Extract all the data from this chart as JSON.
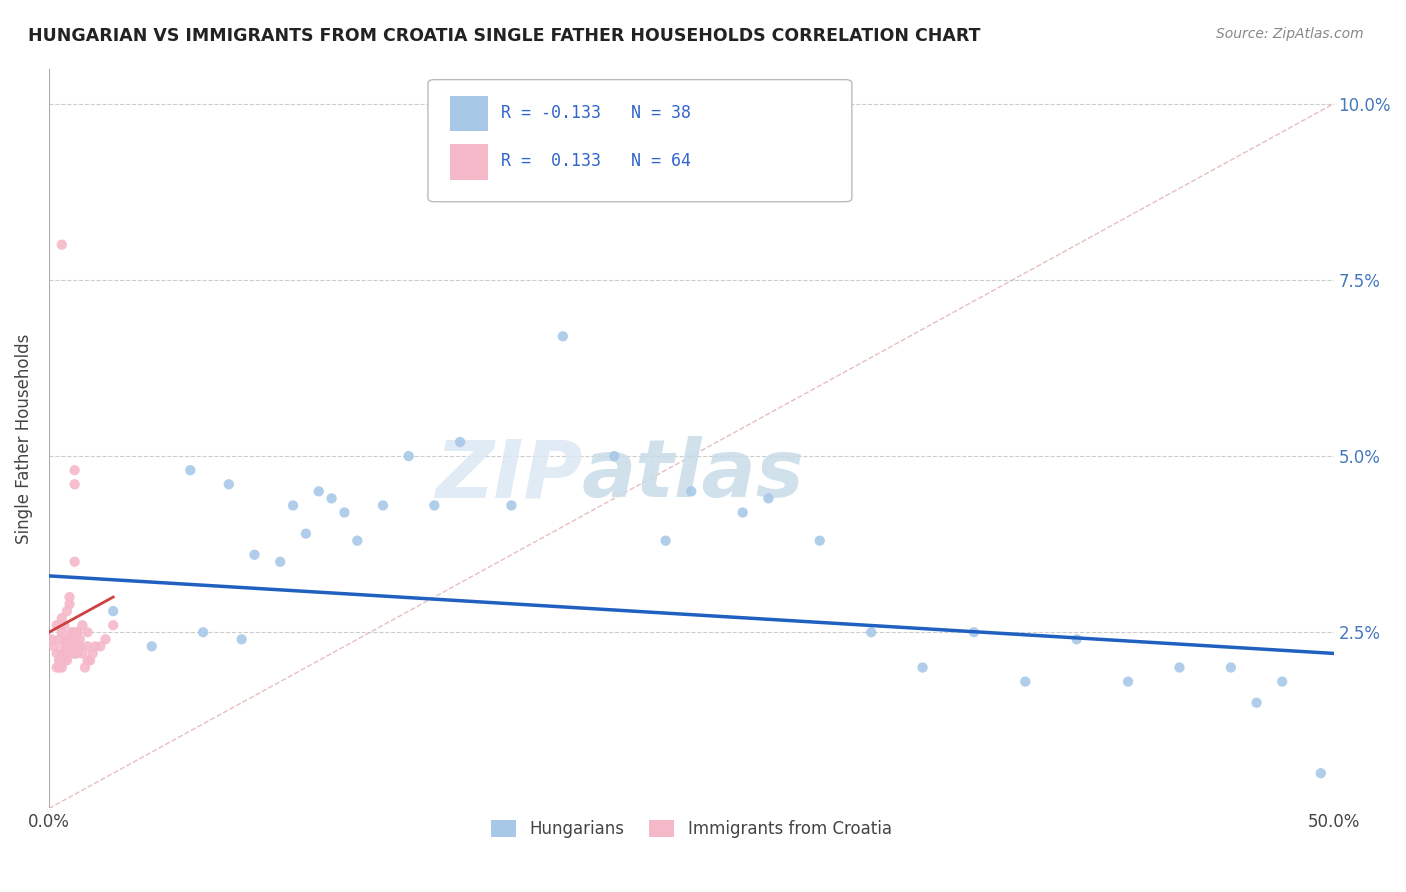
{
  "title": "HUNGARIAN VS IMMIGRANTS FROM CROATIA SINGLE FATHER HOUSEHOLDS CORRELATION CHART",
  "source": "Source: ZipAtlas.com",
  "ylabel": "Single Father Households",
  "xlim": [
    0.0,
    50.0
  ],
  "ylim": [
    0.0,
    10.5
  ],
  "blue_color": "#a8c8e8",
  "pink_color": "#f5b8c8",
  "trend_blue_color": "#2060c0",
  "trend_pink_color": "#d04040",
  "ref_line_color": "#ccbbbb",
  "background_color": "#ffffff",
  "legend_label1": "Hungarians",
  "legend_label2": "Immigrants from Croatia",
  "watermark_zip": "ZIP",
  "watermark_atlas": "atlas",
  "blue_scatter_x": [
    1.0,
    2.5,
    4.0,
    5.5,
    6.0,
    7.0,
    7.5,
    8.0,
    9.0,
    9.5,
    10.0,
    10.5,
    11.0,
    11.5,
    12.0,
    13.0,
    14.0,
    15.0,
    16.0,
    18.0,
    20.0,
    22.0,
    24.0,
    25.0,
    27.0,
    28.0,
    30.0,
    32.0,
    34.0,
    36.0,
    38.0,
    40.0,
    42.0,
    44.0,
    46.0,
    47.0,
    48.0,
    49.5
  ],
  "blue_scatter_y": [
    2.2,
    2.8,
    2.3,
    4.8,
    2.5,
    4.6,
    2.4,
    3.6,
    3.5,
    4.3,
    3.9,
    4.5,
    4.4,
    4.2,
    3.8,
    4.3,
    5.0,
    4.3,
    5.2,
    4.3,
    6.7,
    5.0,
    3.8,
    4.5,
    4.2,
    4.4,
    3.8,
    2.5,
    2.0,
    2.5,
    1.8,
    2.4,
    1.8,
    2.0,
    2.0,
    1.5,
    1.8,
    0.5
  ],
  "pink_scatter_x": [
    0.1,
    0.2,
    0.3,
    0.3,
    0.4,
    0.4,
    0.5,
    0.5,
    0.5,
    0.6,
    0.6,
    0.6,
    0.7,
    0.7,
    0.7,
    0.8,
    0.8,
    0.8,
    0.9,
    0.9,
    0.9,
    1.0,
    1.0,
    1.0,
    1.1,
    1.1,
    1.2,
    1.2,
    1.3,
    1.4,
    1.5,
    1.5,
    1.6,
    1.7,
    1.8,
    2.0,
    2.2,
    2.5,
    0.4,
    0.5,
    0.6,
    0.7,
    0.8,
    0.9,
    1.0,
    1.1,
    1.2,
    1.3,
    1.5,
    1.0,
    0.5,
    0.6,
    0.7,
    0.8,
    1.0,
    0.3,
    0.4,
    0.5,
    0.6,
    0.7,
    0.8,
    0.9,
    0.9,
    1.0
  ],
  "pink_scatter_y": [
    2.4,
    2.3,
    2.6,
    2.2,
    2.4,
    2.1,
    2.2,
    2.5,
    2.7,
    2.2,
    2.3,
    2.6,
    2.4,
    2.8,
    2.1,
    2.9,
    2.2,
    3.0,
    2.4,
    2.5,
    2.3,
    4.6,
    4.8,
    3.5,
    2.2,
    2.5,
    2.3,
    2.4,
    2.6,
    2.0,
    2.1,
    2.5,
    2.1,
    2.2,
    2.3,
    2.3,
    2.4,
    2.6,
    2.0,
    2.1,
    2.2,
    2.3,
    2.2,
    2.4,
    2.2,
    2.5,
    2.3,
    2.2,
    2.3,
    2.4,
    8.0,
    2.1,
    2.2,
    2.3,
    2.4,
    2.0,
    2.1,
    2.0,
    2.1,
    2.3,
    2.4,
    2.5,
    2.2,
    2.3
  ],
  "blue_trend_x0": 0.0,
  "blue_trend_x1": 50.0,
  "blue_trend_y0": 3.3,
  "blue_trend_y1": 2.2,
  "pink_trend_x0": 0.0,
  "pink_trend_x1": 2.5,
  "pink_trend_y0": 2.5,
  "pink_trend_y1": 3.0,
  "ref_line_x0": 0.0,
  "ref_line_x1": 50.0,
  "ref_line_y0": 0.0,
  "ref_line_y1": 10.0
}
